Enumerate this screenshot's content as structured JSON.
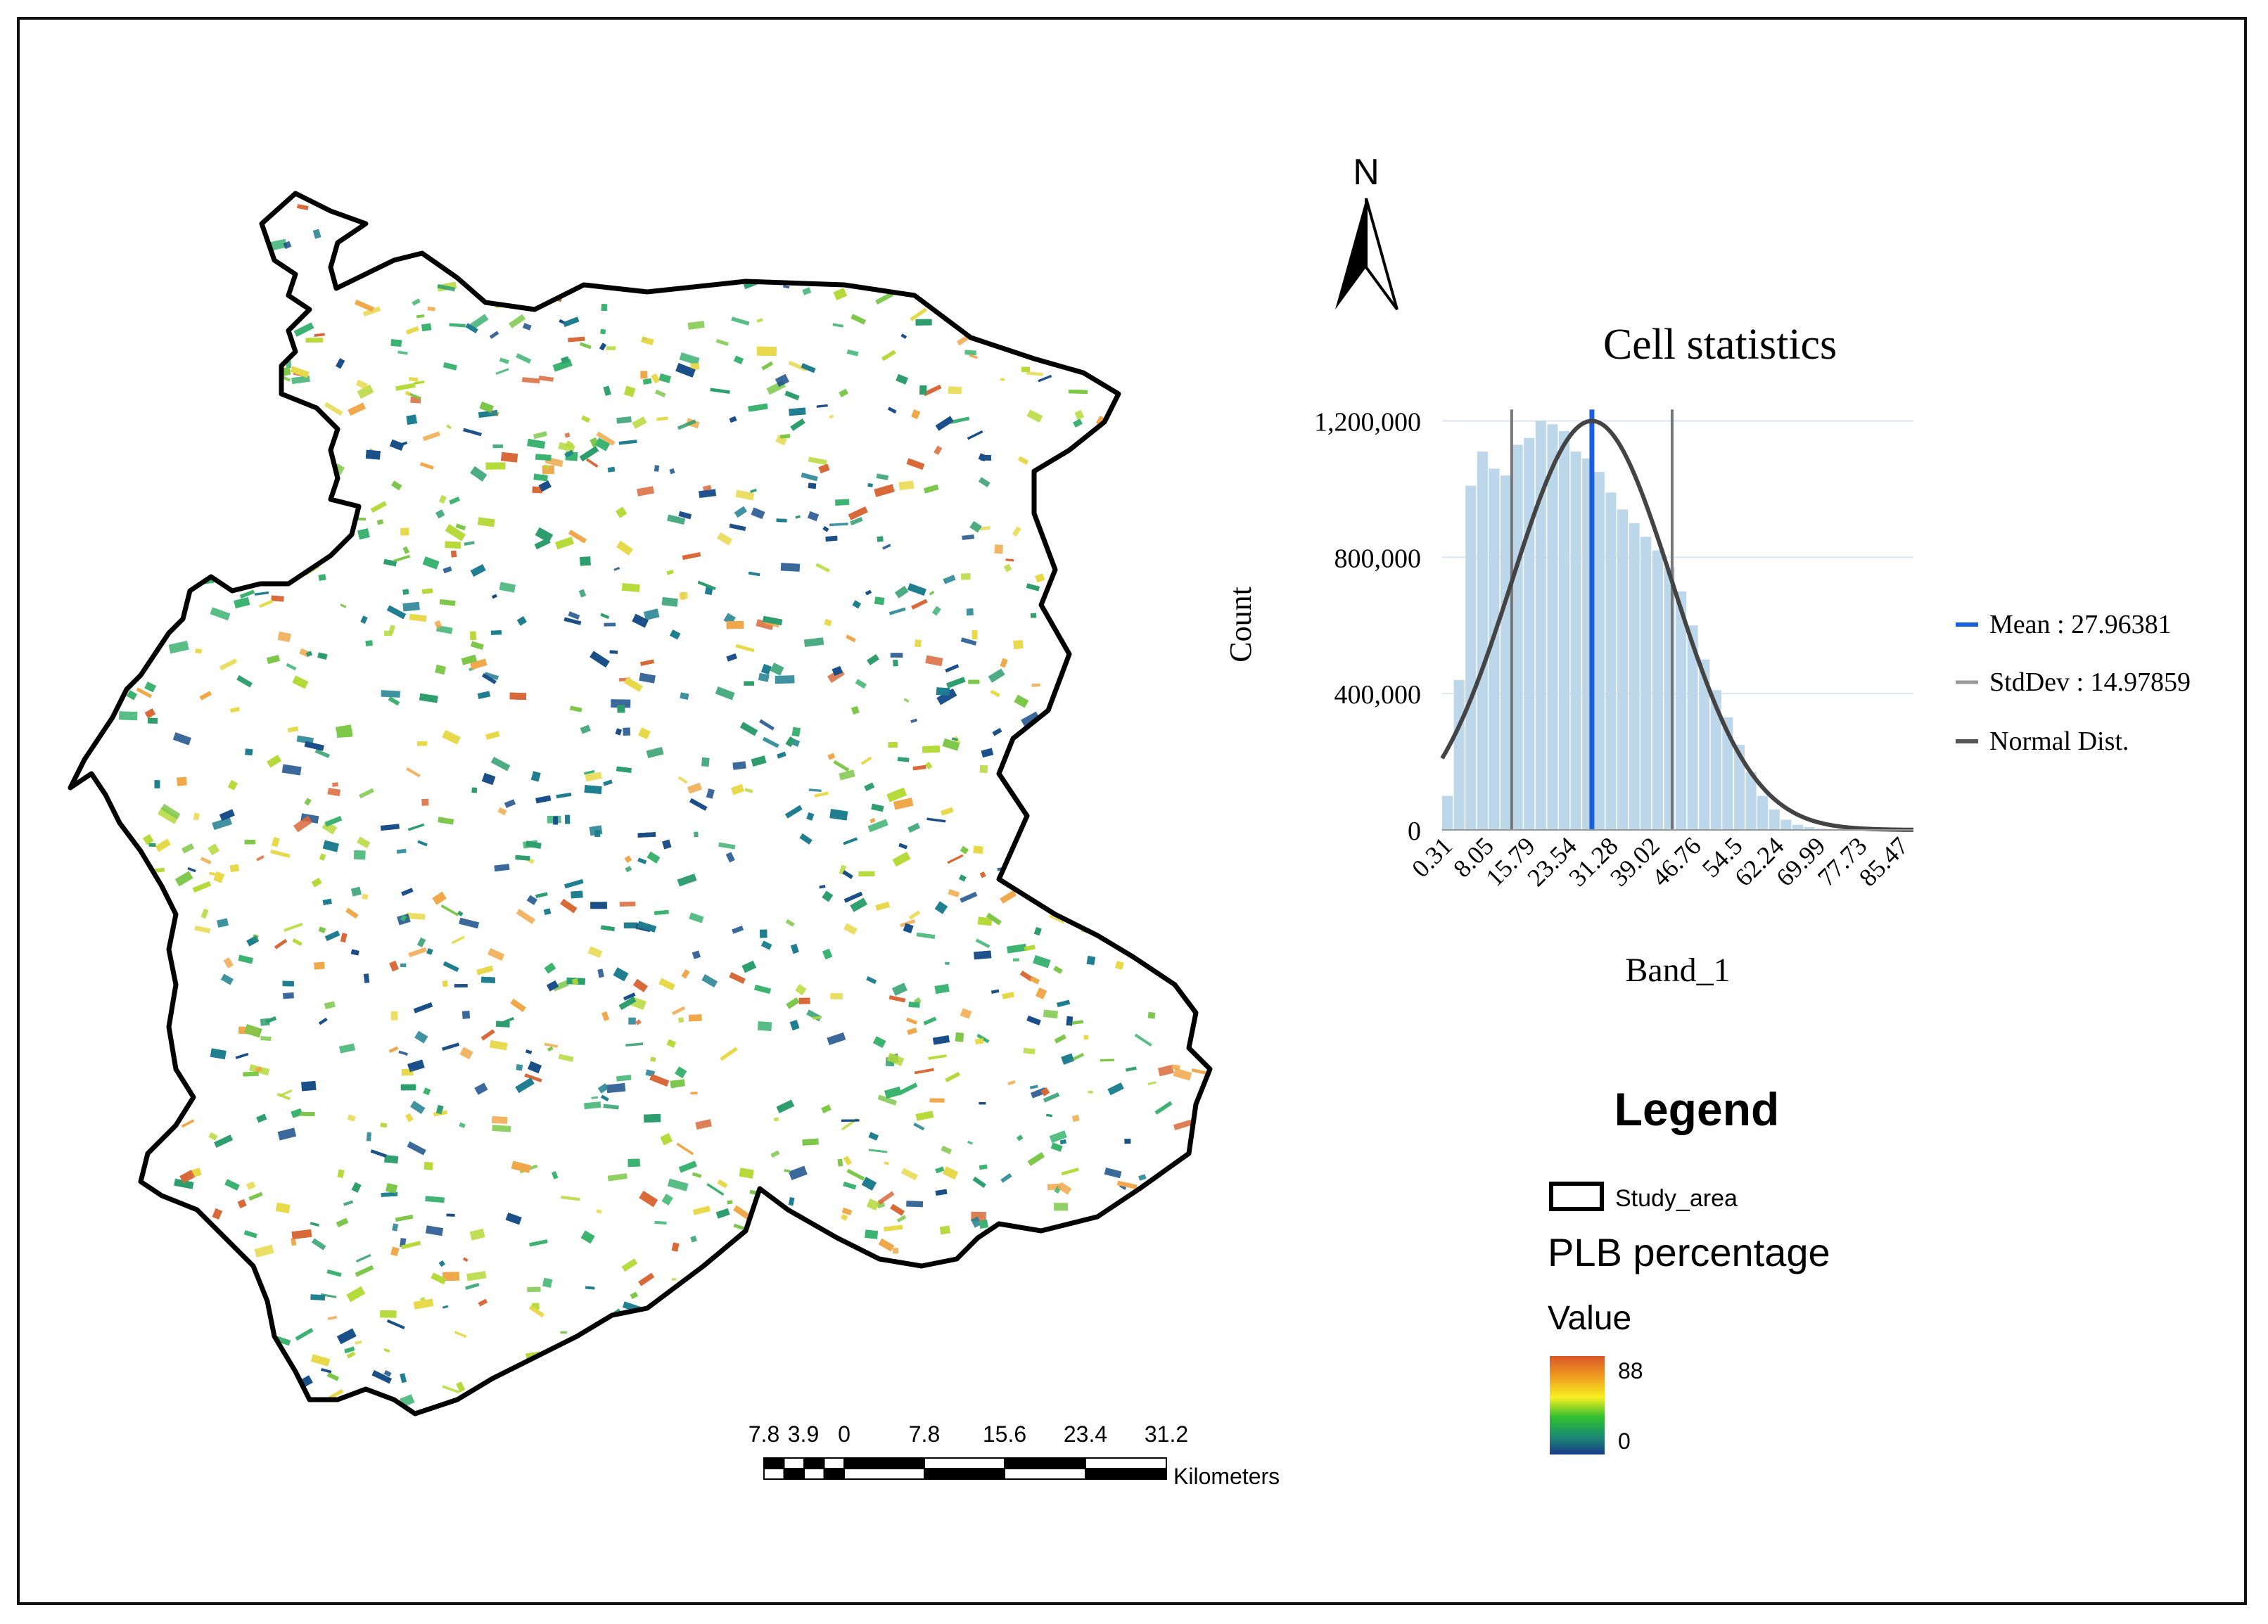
{
  "north_arrow": {
    "label": "N"
  },
  "chart_data": {
    "type": "bar",
    "title": "Cell statistics",
    "xlabel": "Band_1",
    "ylabel": "Count",
    "ylim": [
      0,
      1300000
    ],
    "xlim": [
      0,
      88
    ],
    "bin_width": 2.18,
    "y_ticks": [
      "0",
      "400,000",
      "800,000",
      "1,200,000"
    ],
    "y_tick_values": [
      0,
      400000,
      800000,
      1200000
    ],
    "x_ticks": [
      "0.31",
      "8.05",
      "15.79",
      "23.54",
      "31.28",
      "39.02",
      "46.76",
      "54.5",
      "62.24",
      "69.99",
      "77.73",
      "85.47"
    ],
    "x_tick_values": [
      0.31,
      8.05,
      15.79,
      23.54,
      31.28,
      39.02,
      46.76,
      54.5,
      62.24,
      69.99,
      77.73,
      85.47
    ],
    "values": [
      100000,
      440000,
      1010000,
      1110000,
      1060000,
      1040000,
      1130000,
      1150000,
      1200000,
      1190000,
      1170000,
      1110000,
      1090000,
      1050000,
      990000,
      940000,
      900000,
      860000,
      820000,
      770000,
      700000,
      600000,
      500000,
      410000,
      330000,
      250000,
      170000,
      100000,
      60000,
      30000,
      15000,
      8000,
      4000,
      2000,
      1000,
      500,
      200,
      100,
      50,
      20
    ],
    "mean": 27.96381,
    "stddev": 14.97859,
    "legend": [
      {
        "name": "Mean : 27.96381",
        "color": "#1a5fe0"
      },
      {
        "name": "StdDev : 14.97859",
        "color": "#9a9a9a"
      },
      {
        "name": "Normal Dist.",
        "color": "#555555"
      }
    ],
    "bar_color": "#bcd6ea",
    "curve_color": "#444444"
  },
  "legend": {
    "title": "Legend",
    "study_area": "Study_area",
    "layer_name": "PLB percentage",
    "value_label": "Value",
    "max": "88",
    "min": "0",
    "ramp_colors": [
      "#d8572a",
      "#f0a020",
      "#f8f020",
      "#30c030",
      "#1a8a70",
      "#1a3a8a"
    ]
  },
  "scalebar": {
    "labels": [
      "7.8",
      "3.9",
      "0",
      "7.8",
      "15.6",
      "23.4",
      "31.2"
    ],
    "unit": "Kilometers"
  },
  "map": {
    "boundary_color": "#000000",
    "palette": [
      "#1a4f8a",
      "#1f7f8f",
      "#2e9e6e",
      "#3cb371",
      "#7cc84a",
      "#b5d93a",
      "#e8d84a",
      "#f0a84a",
      "#d9683a"
    ]
  }
}
